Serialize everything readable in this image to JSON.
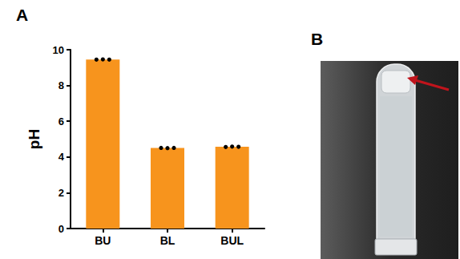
{
  "panel_labels": [
    "A",
    "B"
  ],
  "chart_data": {
    "type": "bar",
    "y_label": "pH",
    "categories": [
      "BU",
      "BL",
      "BUL"
    ],
    "values": [
      9.45,
      4.51,
      4.57
    ],
    "points": [
      [
        9.45,
        9.46,
        9.45
      ],
      [
        4.51,
        4.5,
        4.51
      ],
      [
        4.56,
        4.58,
        4.57
      ]
    ],
    "color": "#f7941d",
    "ylim": [
      0,
      10
    ],
    "yticks": [
      0,
      2,
      4,
      6,
      8,
      10
    ],
    "grid": false
  }
}
